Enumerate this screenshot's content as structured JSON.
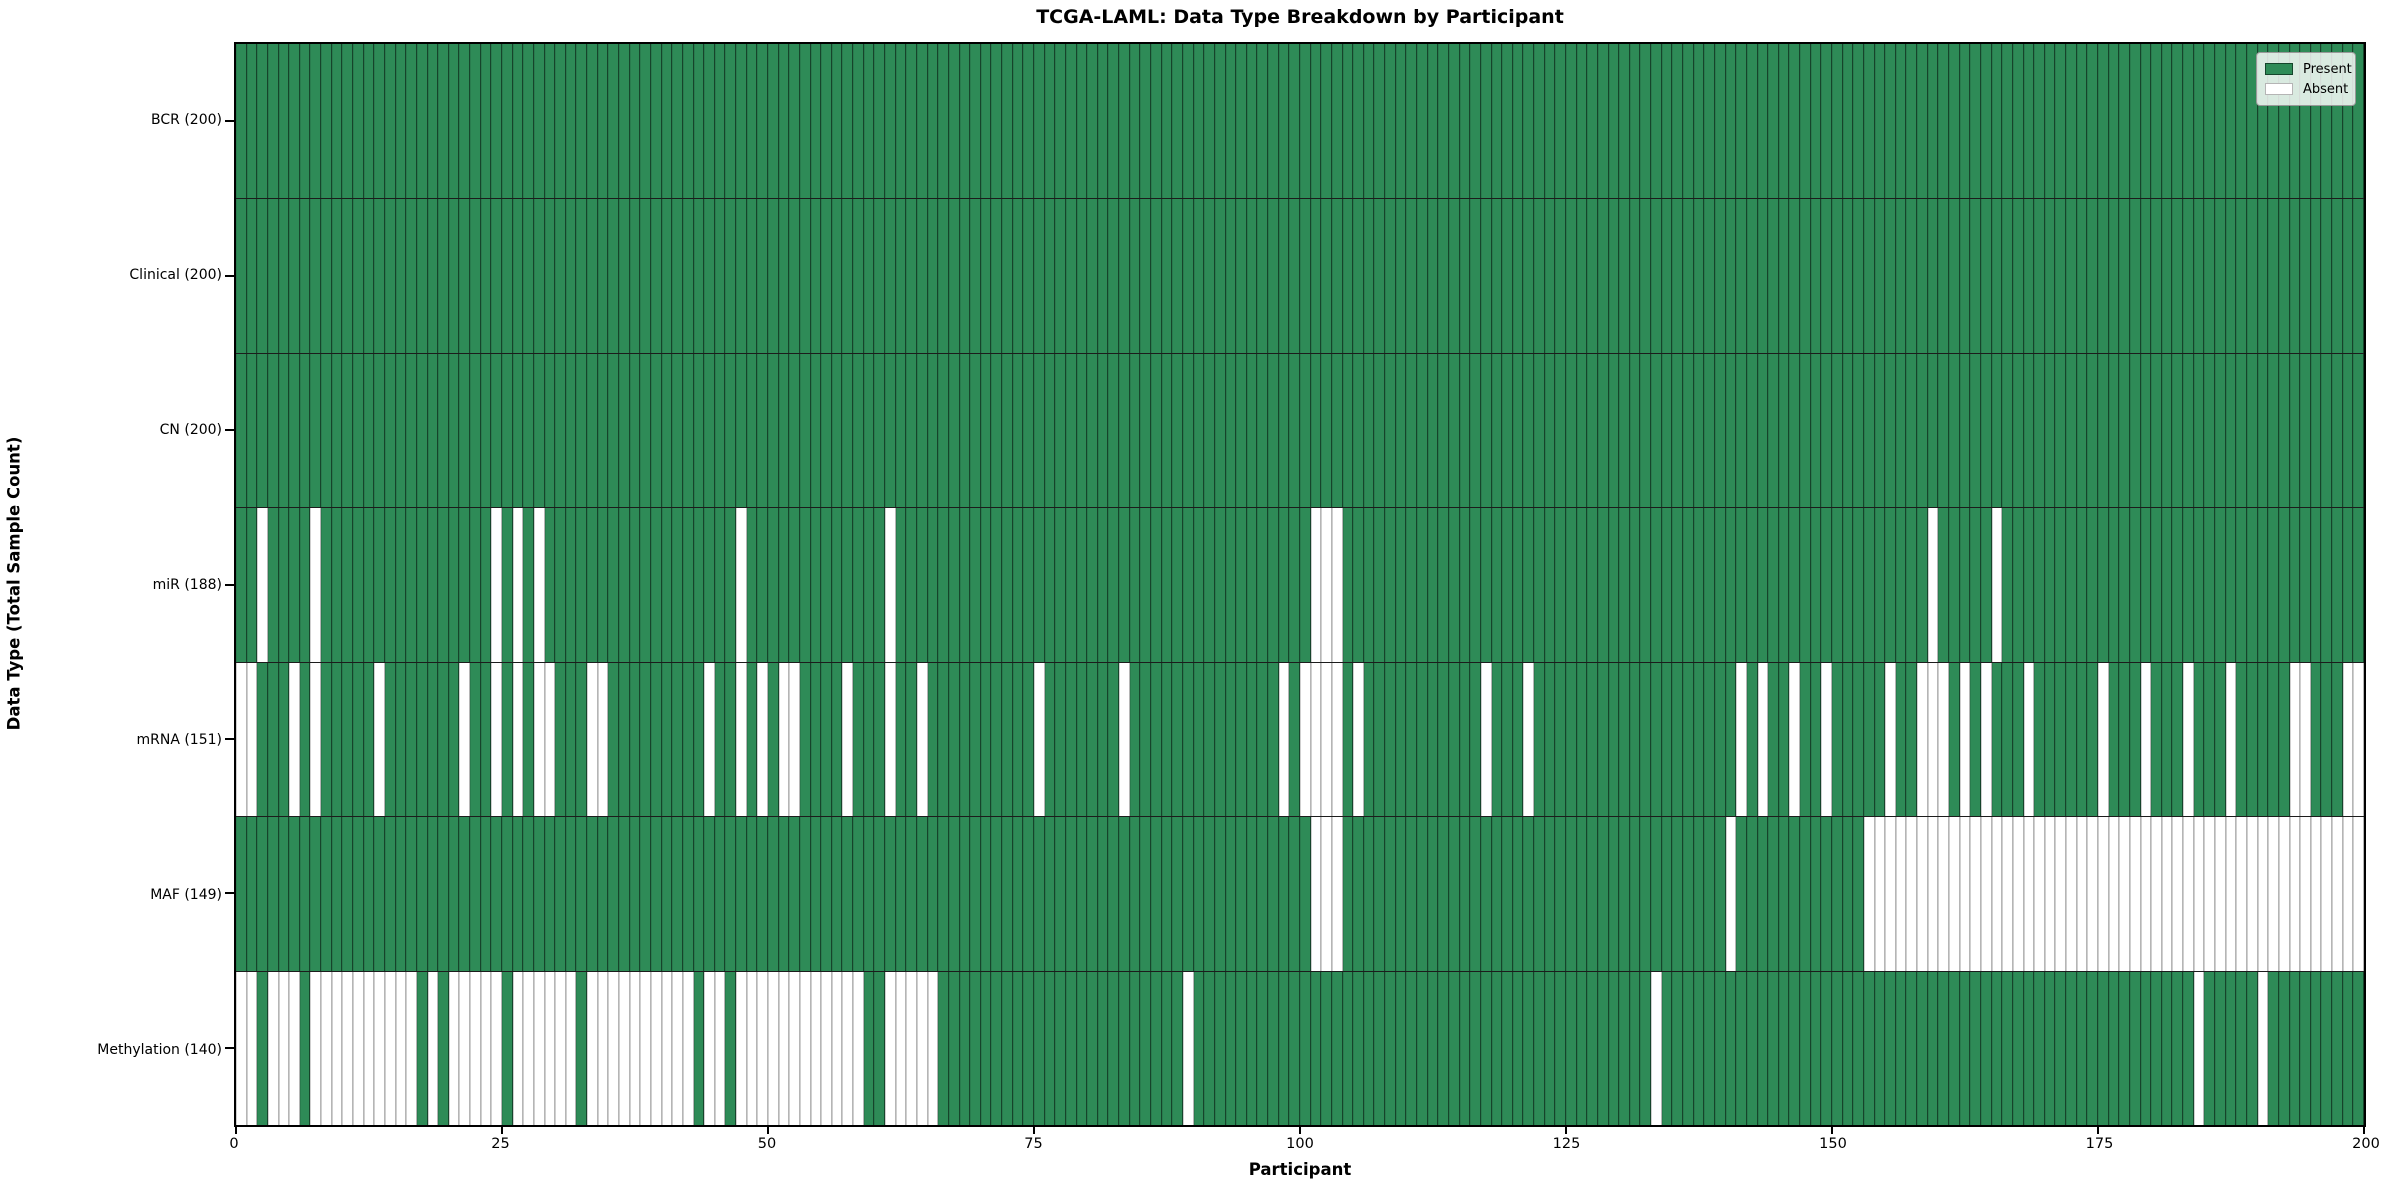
{
  "chart_data": {
    "type": "heatmap",
    "title": "TCGA-LAML: Data Type Breakdown by Participant",
    "xlabel": "Participant",
    "ylabel": "Data Type (Total Sample Count)",
    "n_participants": 200,
    "x_range": [
      0,
      200
    ],
    "x_ticks": [
      "0",
      "25",
      "50",
      "75",
      "100",
      "125",
      "150",
      "175",
      "200"
    ],
    "x_tick_values": [
      0,
      25,
      50,
      75,
      100,
      125,
      150,
      175,
      200
    ],
    "colors": {
      "present": "#2e8b57",
      "absent": "#ffffff",
      "grid_on_present": "rgba(0,0,0,0.5)",
      "grid_on_absent": "#b5b5b5"
    },
    "legend": [
      {
        "label": "Present",
        "color": "#2e8b57"
      },
      {
        "label": "Absent",
        "color": "#ffffff"
      }
    ],
    "legend_position": "upper right",
    "rows": [
      {
        "label": "BCR (200)",
        "data_type": "BCR",
        "present_count": 200,
        "absent_cols": []
      },
      {
        "label": "Clinical (200)",
        "data_type": "Clinical",
        "present_count": 200,
        "absent_cols": []
      },
      {
        "label": "CN (200)",
        "data_type": "CN",
        "present_count": 200,
        "absent_cols": []
      },
      {
        "label": "miR (188)",
        "data_type": "miR",
        "present_count": 188,
        "absent_cols": [
          2,
          7,
          24,
          26,
          28,
          47,
          61,
          101,
          102,
          103,
          159,
          165
        ]
      },
      {
        "label": "mRNA (151)",
        "data_type": "mRNA",
        "present_count": 151,
        "absent_cols": [
          0,
          1,
          5,
          7,
          13,
          21,
          24,
          26,
          28,
          29,
          33,
          34,
          44,
          47,
          49,
          51,
          52,
          57,
          61,
          64,
          75,
          83,
          98,
          100,
          101,
          102,
          103,
          105,
          117,
          121,
          141,
          143,
          146,
          149,
          155,
          158,
          159,
          160,
          162,
          164,
          168,
          175,
          179,
          183,
          187,
          193,
          194,
          198,
          199
        ]
      },
      {
        "label": "MAF (149)",
        "data_type": "MAF",
        "present_count": 149,
        "absent_cols": [
          101,
          102,
          103,
          140,
          153,
          154,
          155,
          156,
          157,
          158,
          159,
          160,
          161,
          162,
          163,
          164,
          165,
          166,
          167,
          168,
          169,
          170,
          171,
          172,
          173,
          174,
          175,
          176,
          177,
          178,
          179,
          180,
          181,
          182,
          183,
          184,
          185,
          186,
          187,
          188,
          189,
          190,
          191,
          192,
          193,
          194,
          195,
          196,
          197,
          198,
          199
        ]
      },
      {
        "label": "Methylation (140)",
        "data_type": "Methylation",
        "present_count": 140,
        "absent_cols": [
          0,
          1,
          3,
          4,
          5,
          7,
          8,
          9,
          10,
          11,
          12,
          13,
          14,
          15,
          16,
          18,
          20,
          21,
          22,
          23,
          24,
          26,
          27,
          28,
          29,
          30,
          31,
          33,
          34,
          35,
          36,
          37,
          38,
          39,
          40,
          41,
          42,
          44,
          45,
          47,
          48,
          49,
          50,
          51,
          52,
          53,
          54,
          55,
          56,
          57,
          58,
          61,
          62,
          63,
          64,
          65,
          89,
          133,
          184,
          190
        ]
      }
    ]
  }
}
